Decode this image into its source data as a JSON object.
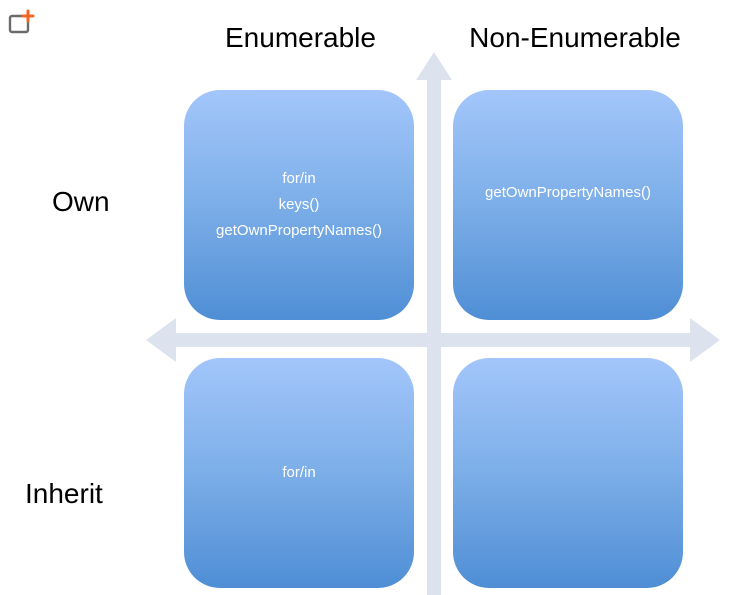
{
  "columns": {
    "enumerable": "Enumerable",
    "non_enumerable": "Non-Enumerable"
  },
  "rows": {
    "own": "Own",
    "inherit": "Inherit"
  },
  "quadrants": {
    "own_enumerable": [
      "for/in",
      "keys()",
      "getOwnPropertyNames()"
    ],
    "own_non_enumerable": [
      "getOwnPropertyNames()"
    ],
    "inherit_enumerable": [
      "for/in"
    ],
    "inherit_non_enumerable": []
  },
  "colors": {
    "quadrant_top": "#a3c6fb",
    "quadrant_bottom": "#4f8ed5",
    "axis": "#dde3ee",
    "corner_icon_accent": "#f26522"
  },
  "icons": {
    "corner": "add-to-frame-icon"
  }
}
